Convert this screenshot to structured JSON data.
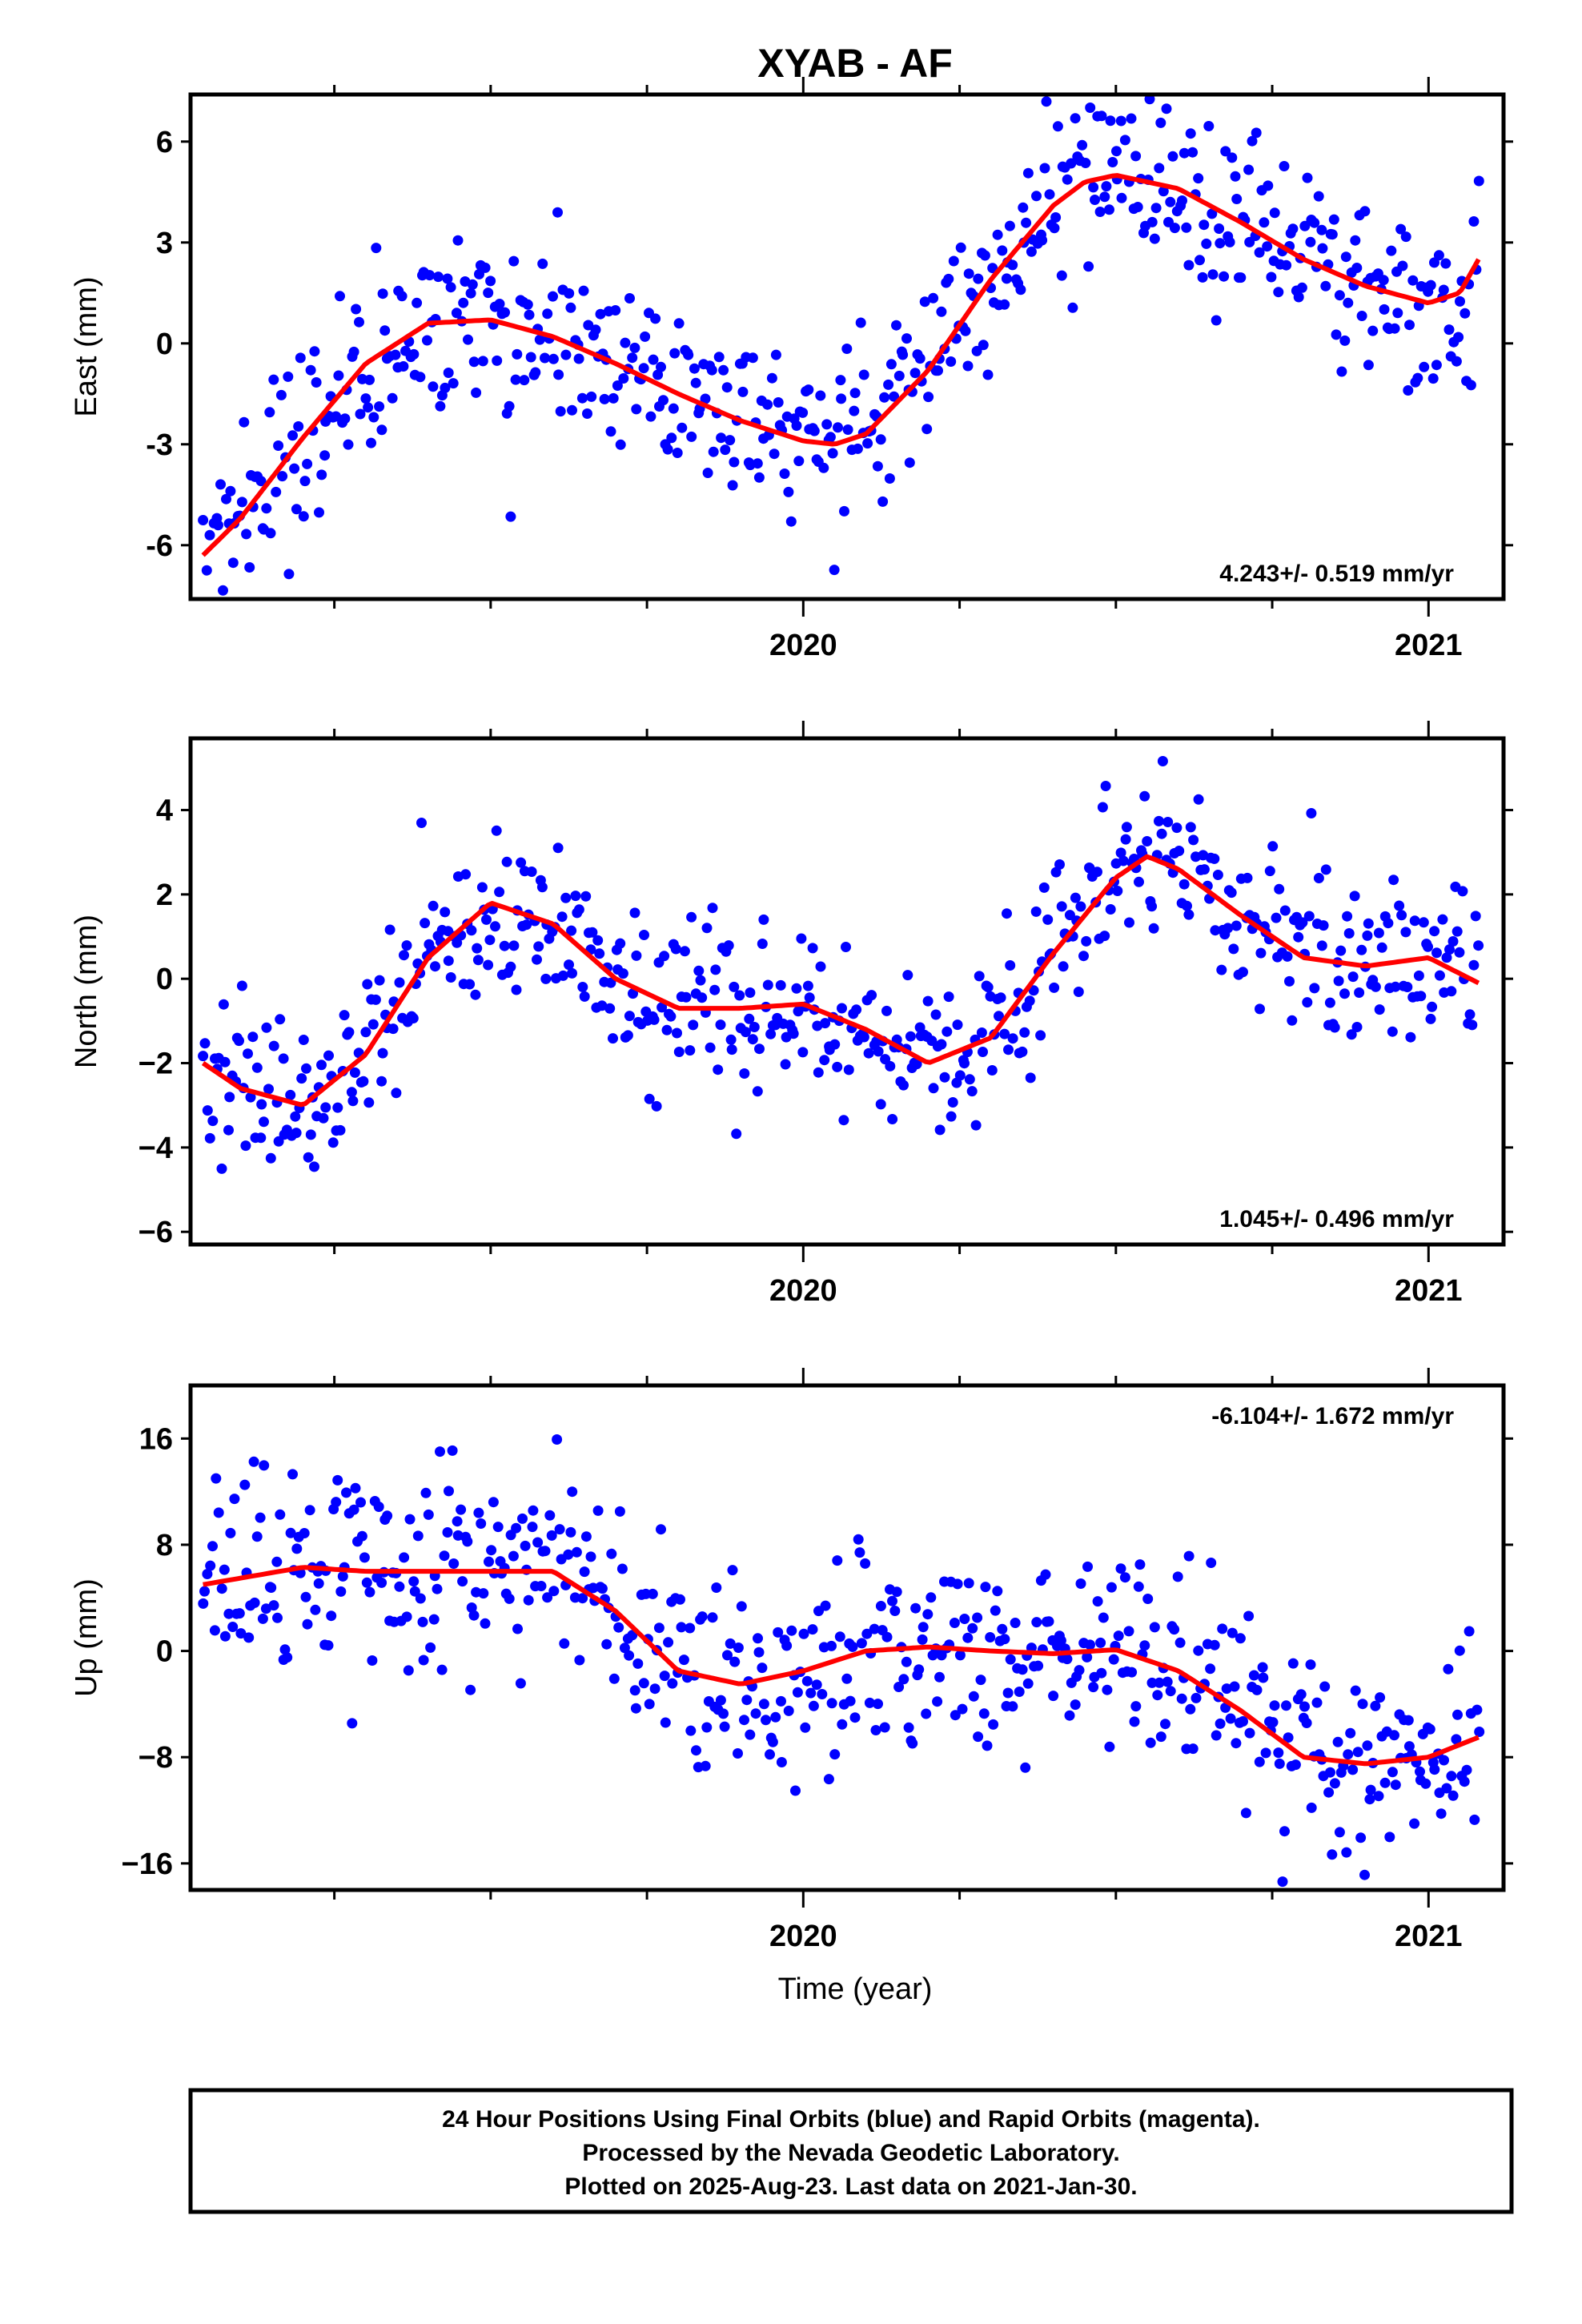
{
  "title": "XYAB - AF",
  "colors": {
    "final_orbit_points": "#0000ff",
    "fit_line": "#ff0000",
    "frame": "#000000"
  },
  "xaxis": {
    "range": [
      2019.02,
      2021.12
    ],
    "label": "Time (year)",
    "tick_labels": [
      "2020",
      "2021"
    ],
    "tick_values": [
      2020,
      2021
    ],
    "minor_tick_values": [
      2019.25,
      2019.5,
      2019.75,
      2020.25,
      2020.5,
      2020.75
    ]
  },
  "chart_data": [
    {
      "type": "scatter",
      "component": "East",
      "ylabel": "East (mm)",
      "ylim": [
        -7.6,
        7.4
      ],
      "yticks": [
        -6,
        -3,
        0,
        3,
        6
      ],
      "ytick_labels": [
        "-6",
        "-3",
        "0",
        "3",
        "6"
      ],
      "rate_label": "4.243+/- 0.519 mm/yr",
      "rate_position": "bottom-right",
      "fit_x": [
        2019.04,
        2019.1,
        2019.2,
        2019.3,
        2019.4,
        2019.5,
        2019.6,
        2019.7,
        2019.8,
        2019.9,
        2020.0,
        2020.05,
        2020.1,
        2020.2,
        2020.3,
        2020.4,
        2020.45,
        2020.5,
        2020.6,
        2020.7,
        2020.8,
        2020.9,
        2021.0,
        2021.05,
        2021.08
      ],
      "fit_y": [
        -6.3,
        -5.2,
        -2.8,
        -0.6,
        0.6,
        0.7,
        0.2,
        -0.6,
        -1.5,
        -2.3,
        -2.9,
        -3.0,
        -2.7,
        -0.8,
        1.9,
        4.1,
        4.8,
        5.0,
        4.6,
        3.6,
        2.5,
        1.7,
        1.2,
        1.5,
        2.5
      ],
      "point_spread": 1.3,
      "point_count": 560
    },
    {
      "type": "scatter",
      "component": "North",
      "ylabel": "North (mm)",
      "ylim": [
        -6.3,
        5.7
      ],
      "yticks": [
        -6,
        -4,
        -2,
        0,
        2,
        4
      ],
      "ytick_labels": [
        "−6",
        "−4",
        "−2",
        "0",
        "2",
        "4"
      ],
      "rate_label": "1.045+/- 0.496 mm/yr",
      "rate_position": "bottom-right",
      "fit_x": [
        2019.04,
        2019.1,
        2019.2,
        2019.3,
        2019.4,
        2019.5,
        2019.6,
        2019.7,
        2019.8,
        2019.9,
        2020.0,
        2020.1,
        2020.2,
        2020.3,
        2020.4,
        2020.5,
        2020.55,
        2020.6,
        2020.7,
        2020.8,
        2020.9,
        2021.0,
        2021.08
      ],
      "fit_y": [
        -2.0,
        -2.6,
        -3.0,
        -1.8,
        0.5,
        1.8,
        1.3,
        0.0,
        -0.7,
        -0.7,
        -0.6,
        -1.2,
        -2.0,
        -1.4,
        0.6,
        2.4,
        2.9,
        2.6,
        1.5,
        0.5,
        0.3,
        0.5,
        -0.1
      ],
      "point_spread": 1.0,
      "point_count": 560
    },
    {
      "type": "scatter",
      "component": "Up",
      "ylabel": "Up (mm)",
      "ylim": [
        -18.0,
        20.0
      ],
      "yticks": [
        -16,
        -8,
        0,
        8,
        16
      ],
      "ytick_labels": [
        "−16",
        "−8",
        "0",
        "8",
        "16"
      ],
      "rate_label": "-6.104+/- 1.672 mm/yr",
      "rate_position": "top-right",
      "fit_x": [
        2019.04,
        2019.2,
        2019.3,
        2019.5,
        2019.6,
        2019.7,
        2019.8,
        2019.9,
        2020.0,
        2020.1,
        2020.2,
        2020.3,
        2020.4,
        2020.5,
        2020.6,
        2020.7,
        2020.8,
        2020.9,
        2021.0,
        2021.08
      ],
      "fit_y": [
        5.0,
        6.3,
        6.0,
        6.0,
        6.0,
        3.0,
        -1.5,
        -2.5,
        -1.5,
        0.0,
        0.3,
        0.0,
        -0.2,
        0.1,
        -1.5,
        -4.5,
        -8.0,
        -8.5,
        -8.0,
        -6.5
      ],
      "point_spread": 3.8,
      "point_count": 560
    }
  ],
  "caption": {
    "line1": "24 Hour Positions Using Final Orbits (blue) and Rapid Orbits (magenta).",
    "line2": "Processed by the Nevada Geodetic Laboratory.",
    "line3": "Plotted on 2025-Aug-23. Last data on 2021-Jan-30."
  }
}
